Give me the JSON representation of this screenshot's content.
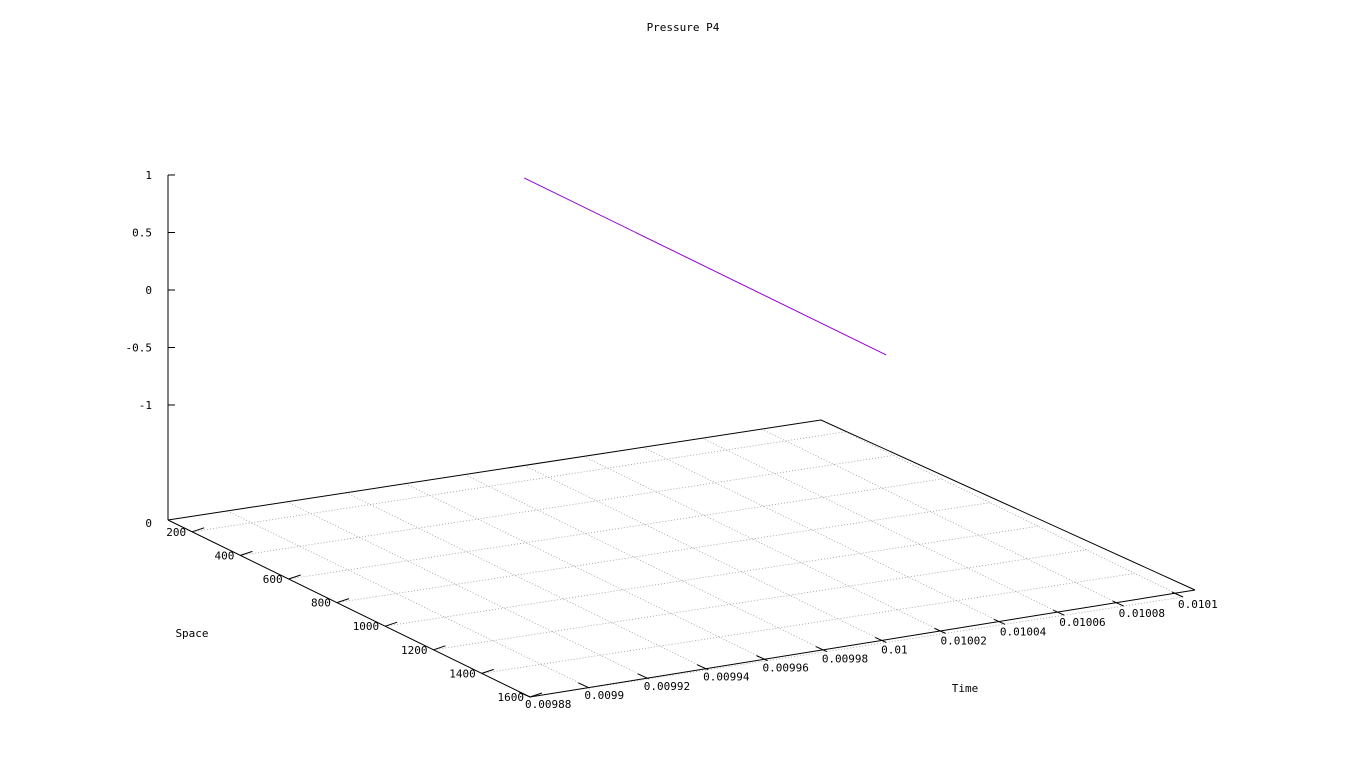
{
  "chart_data": {
    "type": "line",
    "title": "Pressure P4",
    "xlabel": "Space",
    "ylabel": "Time",
    "zlabel": "",
    "xlim": [
      100,
      1600
    ],
    "ylim": [
      0.00988,
      0.0101
    ],
    "zlim": [
      -1,
      1
    ],
    "x_ticks": [
      "200",
      "400",
      "600",
      "800",
      "1000",
      "1200",
      "1400",
      "1600"
    ],
    "y_ticks": [
      "0.00988",
      "0.0099",
      "0.00992",
      "0.00994",
      "0.00996",
      "0.00998",
      "0.01",
      "0.01002",
      "0.01004",
      "0.01006",
      "0.01008",
      "0.0101"
    ],
    "z_ticks": [
      "1",
      "0.5",
      "0",
      "-0.5",
      "-1"
    ],
    "z_base_label": "0",
    "grid": true,
    "series": [
      {
        "color": "#9400d3",
        "x": [
          100,
          1600
        ],
        "y": [
          0.01,
          0.01
        ],
        "z": [
          0.5,
          0.5
        ]
      }
    ]
  }
}
